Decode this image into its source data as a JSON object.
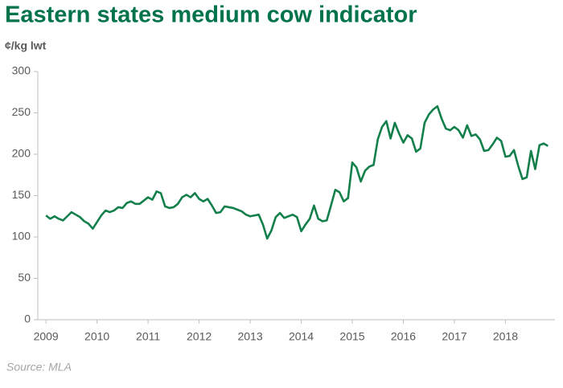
{
  "chart_data": {
    "type": "line",
    "title": "Eastern states medium cow indicator",
    "y_label": "¢/kg lwt",
    "source": "Source: MLA",
    "x": [
      2009,
      2009.083,
      2009.167,
      2009.25,
      2009.333,
      2009.417,
      2009.5,
      2009.583,
      2009.667,
      2009.75,
      2009.833,
      2009.917,
      2010,
      2010.083,
      2010.167,
      2010.25,
      2010.333,
      2010.417,
      2010.5,
      2010.583,
      2010.667,
      2010.75,
      2010.833,
      2010.917,
      2011,
      2011.083,
      2011.167,
      2011.25,
      2011.333,
      2011.417,
      2011.5,
      2011.583,
      2011.667,
      2011.75,
      2011.833,
      2011.917,
      2012,
      2012.083,
      2012.167,
      2012.25,
      2012.333,
      2012.417,
      2012.5,
      2012.583,
      2012.667,
      2012.75,
      2012.833,
      2012.917,
      2013,
      2013.083,
      2013.167,
      2013.25,
      2013.333,
      2013.417,
      2013.5,
      2013.583,
      2013.667,
      2013.75,
      2013.833,
      2013.917,
      2014,
      2014.083,
      2014.167,
      2014.25,
      2014.333,
      2014.417,
      2014.5,
      2014.583,
      2014.667,
      2014.75,
      2014.833,
      2014.917,
      2015,
      2015.083,
      2015.167,
      2015.25,
      2015.333,
      2015.417,
      2015.5,
      2015.583,
      2015.667,
      2015.75,
      2015.833,
      2015.917,
      2016,
      2016.083,
      2016.167,
      2016.25,
      2016.333,
      2016.417,
      2016.5,
      2016.583,
      2016.667,
      2016.75,
      2016.833,
      2016.917,
      2017,
      2017.083,
      2017.167,
      2017.25,
      2017.333,
      2017.417,
      2017.5,
      2017.583,
      2017.667,
      2017.75,
      2017.833,
      2017.917,
      2018,
      2018.083,
      2018.167,
      2018.25,
      2018.333,
      2018.417,
      2018.5,
      2018.583,
      2018.667,
      2018.75,
      2018.833
    ],
    "series": [
      {
        "name": "Eastern states medium cow indicator",
        "color": "#13804c",
        "values": [
          126,
          122,
          125,
          122,
          120,
          125,
          130,
          127,
          124,
          119,
          116,
          110,
          118,
          126,
          132,
          130,
          132,
          136,
          135,
          141,
          143,
          140,
          140,
          144,
          148,
          145,
          155,
          153,
          137,
          135,
          136,
          140,
          148,
          151,
          148,
          153,
          146,
          143,
          146,
          138,
          129,
          130,
          137,
          136,
          135,
          133,
          131,
          127,
          125,
          126,
          127,
          115,
          98,
          108,
          124,
          129,
          123,
          125,
          127,
          124,
          107,
          115,
          122,
          138,
          122,
          119,
          120,
          138,
          157,
          154,
          143,
          147,
          190,
          184,
          167,
          180,
          185,
          187,
          218,
          233,
          240,
          219,
          238,
          225,
          214,
          223,
          219,
          203,
          207,
          238,
          248,
          254,
          258,
          243,
          231,
          229,
          233,
          229,
          220,
          235,
          222,
          224,
          218,
          204,
          205,
          212,
          220,
          216,
          197,
          198,
          205,
          186,
          170,
          172,
          204,
          182,
          211,
          213,
          210
        ]
      }
    ],
    "xlim": [
      2008.84,
      2018.97
    ],
    "xticks": [
      2009,
      2010,
      2011,
      2012,
      2013,
      2014,
      2015,
      2016,
      2017,
      2018
    ],
    "ylim": [
      0,
      300
    ],
    "yticks": [
      0,
      50,
      100,
      150,
      200,
      250,
      300
    ]
  }
}
